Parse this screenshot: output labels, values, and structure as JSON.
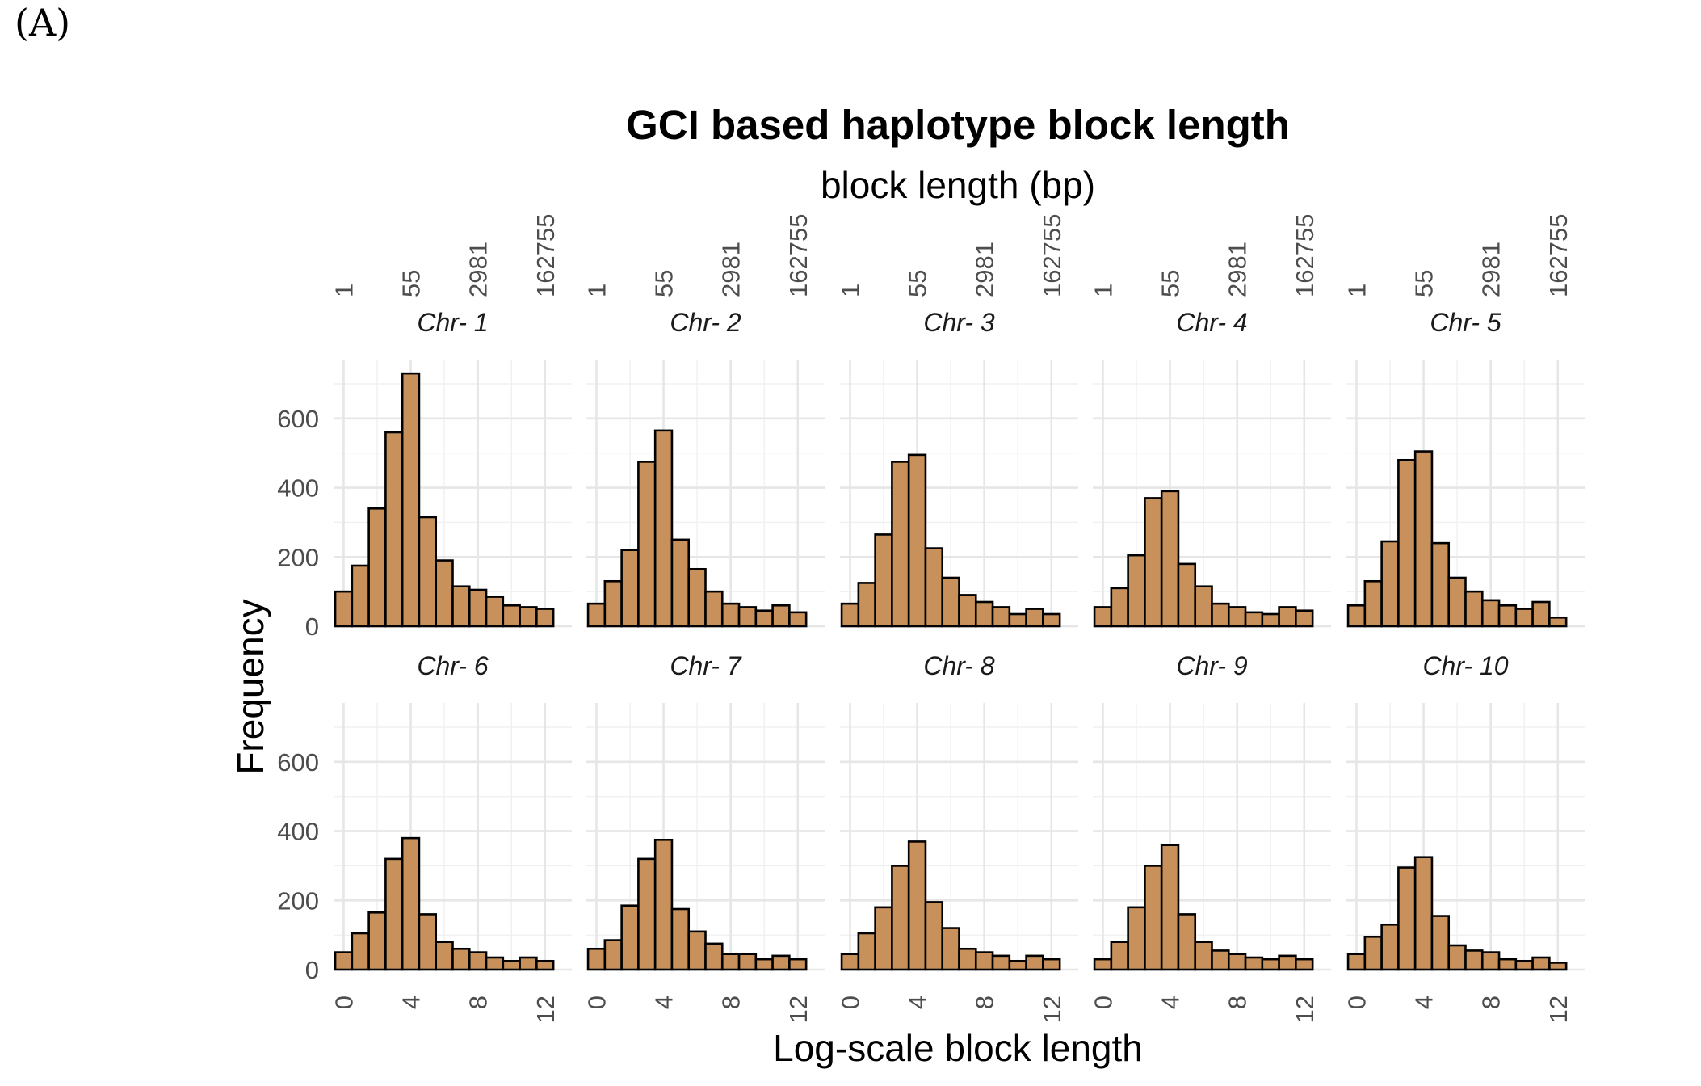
{
  "panel_label": "(A)",
  "colors": {
    "bar_fill": "#c8915b",
    "bar_stroke": "#000000",
    "grid": "#e6e6e6"
  },
  "chart_data": {
    "type": "bar",
    "title": "GCI based haplotype block length",
    "xlabel": "Log-scale block length",
    "ylabel": "Frequency",
    "x2label": "block length (bp)",
    "x_ticks": [
      "0",
      "4",
      "8",
      "12"
    ],
    "x_tick_values": [
      0,
      4,
      8,
      12
    ],
    "x2_ticks": [
      "1",
      "55",
      "2981",
      "162755"
    ],
    "x2_tick_values": [
      0,
      4,
      8,
      12
    ],
    "y_ticks": [
      "0",
      "200",
      "400",
      "600"
    ],
    "y_tick_values": [
      0,
      200,
      400,
      600
    ],
    "xlim": [
      -0.6,
      13.6
    ],
    "ylim": [
      0,
      770
    ],
    "bin_width": 1,
    "bin_centers": [
      0,
      1,
      2,
      3,
      4,
      5,
      6,
      7,
      8,
      9,
      10,
      11,
      12
    ],
    "grid": true,
    "facet_layout": {
      "rows": 2,
      "cols": 5
    },
    "facets": [
      {
        "label": "Chr- 1",
        "values": [
          100,
          175,
          340,
          560,
          730,
          315,
          190,
          115,
          105,
          85,
          60,
          55,
          50
        ]
      },
      {
        "label": "Chr- 2",
        "values": [
          65,
          130,
          220,
          475,
          565,
          250,
          165,
          100,
          65,
          55,
          45,
          60,
          40
        ]
      },
      {
        "label": "Chr- 3",
        "values": [
          65,
          125,
          265,
          475,
          495,
          225,
          140,
          90,
          70,
          55,
          35,
          50,
          35
        ]
      },
      {
        "label": "Chr- 4",
        "values": [
          55,
          110,
          205,
          370,
          390,
          180,
          115,
          65,
          55,
          40,
          35,
          55,
          45
        ]
      },
      {
        "label": "Chr- 5",
        "values": [
          60,
          130,
          245,
          480,
          505,
          240,
          140,
          100,
          75,
          60,
          50,
          70,
          25
        ]
      },
      {
        "label": "Chr- 6",
        "values": [
          50,
          105,
          165,
          320,
          380,
          160,
          80,
          60,
          50,
          35,
          25,
          35,
          25
        ]
      },
      {
        "label": "Chr- 7",
        "values": [
          60,
          85,
          185,
          320,
          375,
          175,
          110,
          75,
          45,
          45,
          30,
          40,
          30
        ]
      },
      {
        "label": "Chr- 8",
        "values": [
          45,
          105,
          180,
          300,
          370,
          195,
          120,
          60,
          50,
          40,
          25,
          40,
          30
        ]
      },
      {
        "label": "Chr- 9",
        "values": [
          30,
          80,
          180,
          300,
          360,
          160,
          80,
          55,
          45,
          35,
          30,
          40,
          30
        ]
      },
      {
        "label": "Chr- 10",
        "values": [
          45,
          95,
          130,
          295,
          325,
          155,
          70,
          55,
          50,
          30,
          25,
          35,
          20
        ]
      }
    ]
  }
}
